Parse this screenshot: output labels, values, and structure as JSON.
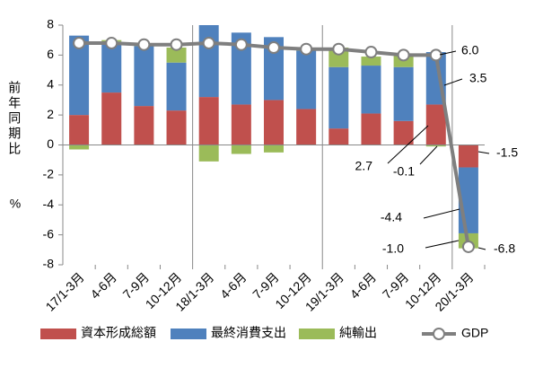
{
  "chart_data": {
    "type": "bar",
    "y_label": "前年同期比",
    "y_unit": "%",
    "categories": [
      "17/1-3月",
      "4-6月",
      "7-9月",
      "10-12月",
      "18/1-3月",
      "4-6月",
      "7-9月",
      "10-12月",
      "19/1-3月",
      "4-6月",
      "7-9月",
      "10-12月",
      "20/1-3月"
    ],
    "series": [
      {
        "name": "資本形成総額",
        "color": "#c0504d",
        "values": [
          2.0,
          3.5,
          2.6,
          2.3,
          3.2,
          2.7,
          3.0,
          2.4,
          1.1,
          2.1,
          1.6,
          2.7,
          -1.5
        ],
        "value_labels": [
          null,
          null,
          null,
          null,
          null,
          null,
          null,
          null,
          null,
          null,
          null,
          "2.7",
          "-1.5"
        ]
      },
      {
        "name": "最終消費支出",
        "color": "#4f81bd",
        "values": [
          5.3,
          3.4,
          4.0,
          3.2,
          4.8,
          4.8,
          4.2,
          3.9,
          4.1,
          3.2,
          3.6,
          3.5,
          -4.4
        ],
        "value_labels": [
          null,
          null,
          null,
          null,
          null,
          null,
          null,
          null,
          null,
          null,
          null,
          "3.5",
          "-4.4"
        ]
      },
      {
        "name": "純輸出",
        "color": "#9bbb59",
        "values": [
          -0.3,
          0.1,
          0.1,
          1.0,
          -1.1,
          -0.6,
          -0.5,
          0.1,
          1.3,
          0.6,
          0.8,
          -0.1,
          -1.0
        ],
        "value_labels": [
          null,
          null,
          null,
          null,
          null,
          null,
          null,
          null,
          null,
          null,
          null,
          "-0.1",
          "-1.0"
        ]
      },
      {
        "name": "GDP",
        "type": "line",
        "color": "#7f7f7f",
        "values": [
          6.8,
          6.8,
          6.7,
          6.7,
          6.8,
          6.7,
          6.5,
          6.4,
          6.4,
          6.2,
          6.0,
          6.0,
          -6.8
        ],
        "value_labels": [
          null,
          null,
          null,
          null,
          null,
          null,
          null,
          null,
          null,
          null,
          null,
          "6.0",
          "-6.8"
        ]
      }
    ],
    "ylim": [
      -8,
      8
    ],
    "yticks": [
      -8,
      -6,
      -4,
      -2,
      0,
      2,
      4,
      6,
      8
    ],
    "grid": false,
    "legend": "bottom"
  }
}
